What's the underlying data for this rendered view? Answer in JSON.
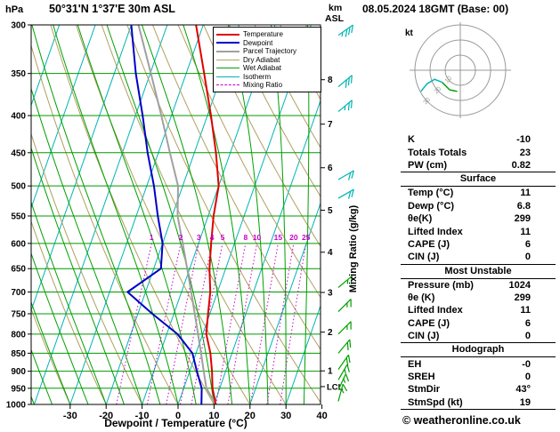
{
  "header": {
    "pressure_unit": "hPa",
    "station": "50°31'N 1°37'E 30m ASL",
    "datetime": "08.05.2024 18GMT (Base: 00)",
    "alt_unit_top": "km",
    "alt_unit_bottom": "ASL"
  },
  "legend": {
    "items": [
      {
        "label": "Temperature",
        "color": "#e00000",
        "width": 2,
        "dash": false
      },
      {
        "label": "Dewpoint",
        "color": "#0000c8",
        "width": 2,
        "dash": false
      },
      {
        "label": "Parcel Trajectory",
        "color": "#a0a0a0",
        "width": 2,
        "dash": false
      },
      {
        "label": "Dry Adiabat",
        "color": "#b0a060",
        "width": 1,
        "dash": false
      },
      {
        "label": "Wet Adiabat",
        "color": "#00a000",
        "width": 1,
        "dash": false
      },
      {
        "label": "Isotherm",
        "color": "#00b4b4",
        "width": 1,
        "dash": false
      },
      {
        "label": "Mixing Ratio",
        "color": "#cc00cc",
        "width": 1,
        "dash": true
      }
    ]
  },
  "chart_data": {
    "type": "line",
    "title": "Skew-T log-P sounding",
    "xlabel": "Dewpoint / Temperature (°C)",
    "ylabel": "hPa",
    "mixing_axis_label": "Mixing Ratio (g/kg)",
    "pressure_range": [
      300,
      1000
    ],
    "temp_axis_ticks": [
      -30,
      -20,
      -10,
      0,
      10,
      20,
      30,
      40
    ],
    "pressure_ticks": [
      300,
      350,
      400,
      450,
      500,
      550,
      600,
      650,
      700,
      750,
      800,
      850,
      900,
      950,
      1000
    ],
    "km_ticks": [
      {
        "km": 8,
        "p": 357
      },
      {
        "km": 7,
        "p": 411
      },
      {
        "km": 6,
        "p": 472
      },
      {
        "km": 5,
        "p": 540
      },
      {
        "km": 4,
        "p": 617
      },
      {
        "km": 3,
        "p": 701
      },
      {
        "km": 2,
        "p": 795
      },
      {
        "km": 1,
        "p": 899
      }
    ],
    "lcl": {
      "label": "LCL",
      "pressure": 945
    },
    "mixing_ratio_values": [
      1,
      2,
      3,
      4,
      5,
      8,
      10,
      15,
      20,
      25
    ],
    "isotherm_step_c": 10,
    "dry_adiabat_step_c": 10,
    "wet_adiabat_step_c": 5,
    "colors": {
      "temperature": "#e00000",
      "dewpoint": "#0000c8",
      "parcel": "#a0a0a0",
      "dry_adiabat": "#b0a060",
      "wet_adiabat": "#00a000",
      "isotherm": "#00b4b4",
      "mixing_ratio": "#cc00cc",
      "isobar": "#009900",
      "axis": "#000000"
    },
    "series": [
      {
        "name": "Temperature",
        "color": "#e00000",
        "width": 2,
        "points": [
          [
            1000,
            10.5
          ],
          [
            950,
            8
          ],
          [
            900,
            6.2
          ],
          [
            850,
            4
          ],
          [
            800,
            1
          ],
          [
            750,
            -0.5
          ],
          [
            700,
            -2
          ],
          [
            650,
            -4.5
          ],
          [
            600,
            -6.5
          ],
          [
            550,
            -8.5
          ],
          [
            500,
            -10
          ],
          [
            450,
            -14
          ],
          [
            400,
            -19
          ],
          [
            350,
            -25
          ],
          [
            300,
            -32
          ]
        ]
      },
      {
        "name": "Dewpoint",
        "color": "#0000c8",
        "width": 2,
        "points": [
          [
            1000,
            6.5
          ],
          [
            950,
            5
          ],
          [
            900,
            2
          ],
          [
            850,
            -1
          ],
          [
            800,
            -7
          ],
          [
            750,
            -16
          ],
          [
            700,
            -25
          ],
          [
            650,
            -18
          ],
          [
            600,
            -20
          ],
          [
            550,
            -24
          ],
          [
            500,
            -28
          ],
          [
            450,
            -33
          ],
          [
            400,
            -38
          ],
          [
            350,
            -44
          ],
          [
            300,
            -50
          ]
        ]
      },
      {
        "name": "Parcel Trajectory",
        "color": "#a0a0a0",
        "width": 2,
        "points": [
          [
            1000,
            10.5
          ],
          [
            950,
            6.3
          ],
          [
            900,
            3.9
          ],
          [
            850,
            1.4
          ],
          [
            800,
            -1.3
          ],
          [
            750,
            -4.2
          ],
          [
            700,
            -7.3
          ],
          [
            650,
            -10.7
          ],
          [
            600,
            -14.4
          ],
          [
            550,
            -18.5
          ],
          [
            500,
            -21.3
          ],
          [
            450,
            -26.8
          ],
          [
            400,
            -32.8
          ],
          [
            350,
            -39.8
          ],
          [
            300,
            -48
          ]
        ]
      }
    ]
  },
  "wind_barbs": [
    {
      "p": 310,
      "spd": 35,
      "dir": 55,
      "color": "#00b4b4"
    },
    {
      "p": 365,
      "spd": 30,
      "dir": 50,
      "color": "#00b4b4"
    },
    {
      "p": 395,
      "spd": 28,
      "dir": 50,
      "color": "#00b4b4"
    },
    {
      "p": 490,
      "spd": 22,
      "dir": 60,
      "color": "#00b4b4"
    },
    {
      "p": 520,
      "spd": 20,
      "dir": 60,
      "color": "#00b4b4"
    },
    {
      "p": 690,
      "spd": 15,
      "dir": 50,
      "color": "#00a000"
    },
    {
      "p": 745,
      "spd": 15,
      "dir": 45,
      "color": "#00a000"
    },
    {
      "p": 800,
      "spd": 15,
      "dir": 45,
      "color": "#00a000"
    },
    {
      "p": 850,
      "spd": 20,
      "dir": 40,
      "color": "#00a000"
    },
    {
      "p": 895,
      "spd": 20,
      "dir": 35,
      "color": "#00a000"
    },
    {
      "p": 925,
      "spd": 18,
      "dir": 30,
      "color": "#00a000"
    },
    {
      "p": 955,
      "spd": 15,
      "dir": 25,
      "color": "#00a000"
    },
    {
      "p": 990,
      "spd": 15,
      "dir": 15,
      "color": "#00a000"
    }
  ],
  "hodograph": {
    "unit": "kt",
    "rings_kt": [
      10,
      20,
      30
    ],
    "trace_segments": [
      {
        "color": "#00a000",
        "points": [
          [
            -2,
            -14
          ],
          [
            -7,
            -13
          ],
          [
            -10,
            -10
          ],
          [
            -12,
            -8
          ]
        ]
      },
      {
        "color": "#00b4b4",
        "points": [
          [
            -12,
            -8
          ],
          [
            -17,
            -6
          ],
          [
            -22,
            -9
          ],
          [
            -26,
            -14
          ]
        ]
      }
    ]
  },
  "panel": {
    "sections": [
      {
        "title": null,
        "rows": [
          [
            "K",
            "-10"
          ],
          [
            "Totals Totals",
            "23"
          ],
          [
            "PW (cm)",
            "0.82"
          ]
        ]
      },
      {
        "title": "Surface",
        "rows": [
          [
            "Temp (°C)",
            "11"
          ],
          [
            "Dewp (°C)",
            "6.8"
          ],
          [
            "θe(K)",
            "299"
          ],
          [
            "Lifted Index",
            "11"
          ],
          [
            "CAPE (J)",
            "6"
          ],
          [
            "CIN (J)",
            "0"
          ]
        ]
      },
      {
        "title": "Most Unstable",
        "rows": [
          [
            "Pressure (mb)",
            "1024"
          ],
          [
            "θe (K)",
            "299"
          ],
          [
            "Lifted Index",
            "11"
          ],
          [
            "CAPE (J)",
            "6"
          ],
          [
            "CIN (J)",
            "0"
          ]
        ]
      },
      {
        "title": "Hodograph",
        "rows": [
          [
            "EH",
            "-0"
          ],
          [
            "SREH",
            "0"
          ],
          [
            "StmDir",
            "43°"
          ],
          [
            "StmSpd (kt)",
            "19"
          ]
        ]
      }
    ]
  },
  "footer": {
    "copyright": "© weatheronline.co.uk"
  }
}
